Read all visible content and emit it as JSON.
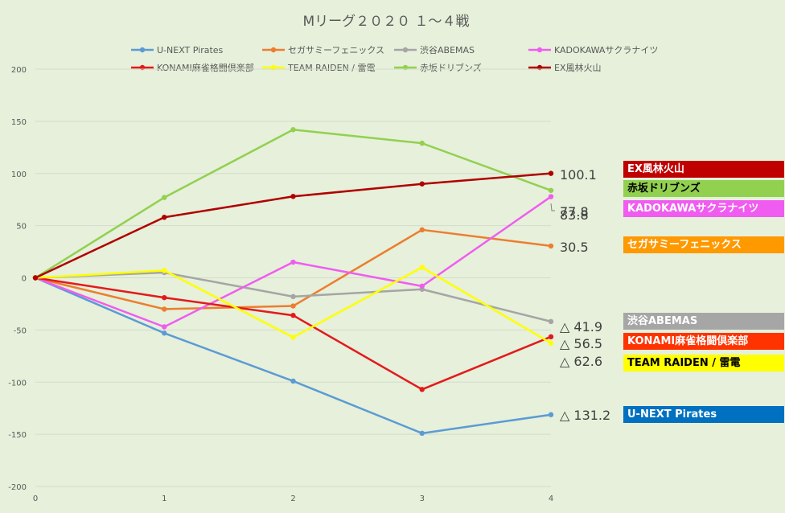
{
  "chart_data": {
    "type": "line",
    "title": "Mリーグ２０２０ １～４戦",
    "xlabel": "",
    "ylabel": "",
    "x": [
      0,
      1,
      2,
      3,
      4
    ],
    "xlim": [
      0,
      4
    ],
    "ylim": [
      -200,
      200
    ],
    "yticks": [
      200,
      150,
      100,
      50,
      0,
      -50,
      -100,
      -150,
      -200
    ],
    "grid": "horizontal",
    "legend_position": "top",
    "series": [
      {
        "name": "U-NEXT Pirates",
        "color": "#5b9bd5",
        "values": [
          0,
          -53,
          -99,
          -149,
          -131.2
        ]
      },
      {
        "name": "セガサミーフェニックス",
        "color": "#ed7d31",
        "values": [
          0,
          -30,
          -27,
          46,
          30.5
        ]
      },
      {
        "name": "渋谷ABEMAS",
        "color": "#a5a5a5",
        "values": [
          0,
          5,
          -18,
          -11,
          -41.9
        ]
      },
      {
        "name": "KADOKAWAサクラナイツ",
        "color": "#f05cf0",
        "values": [
          0,
          -47,
          15,
          -8,
          77.8
        ]
      },
      {
        "name": "KONAMI麻雀格闘倶楽部",
        "color": "#e31a1c",
        "values": [
          0,
          -19,
          -36,
          -107,
          -56.5
        ]
      },
      {
        "name": "TEAM RAIDEN / 雷電",
        "color": "#ffff00",
        "values": [
          0,
          7,
          -57,
          10,
          -62.6
        ]
      },
      {
        "name": "赤坂ドリブンズ",
        "color": "#92d050",
        "values": [
          0,
          77,
          142,
          129,
          83.8
        ]
      },
      {
        "name": "EX風林火山",
        "color": "#b00000",
        "values": [
          0,
          58,
          78,
          90,
          100.1
        ]
      }
    ],
    "end_labels": [
      {
        "text": "100.1",
        "value": 100.1
      },
      {
        "text": "83.8",
        "value": 83.8
      },
      {
        "text": "77.8",
        "value": 77.8
      },
      {
        "text": "30.5",
        "value": 30.5
      },
      {
        "text": "△ 41.9",
        "value": -41.9
      },
      {
        "text": "△ 56.5",
        "value": -56.5
      },
      {
        "text": "△ 62.6",
        "value": -62.6
      },
      {
        "text": "△ 131.2",
        "value": -131.2
      }
    ]
  },
  "team_tags": [
    {
      "label": "EX風林火山",
      "bg": "#c00000",
      "fg": "#ffffff"
    },
    {
      "label": "赤坂ドリブンズ",
      "bg": "#92d050",
      "fg": "#000000"
    },
    {
      "label": "KADOKAWAサクラナイツ",
      "bg": "#f05cf0",
      "fg": "#ffffff"
    },
    {
      "label": "セガサミーフェニックス",
      "bg": "#ff9900",
      "fg": "#ffffff"
    },
    {
      "label": "渋谷ABEMAS",
      "bg": "#a6a6a6",
      "fg": "#ffffff"
    },
    {
      "label": "KONAMI麻雀格闘倶楽部",
      "bg": "#ff3300",
      "fg": "#ffffff"
    },
    {
      "label": "TEAM RAIDEN / 雷電",
      "bg": "#ffff00",
      "fg": "#000000"
    },
    {
      "label": "U-NEXT Pirates",
      "bg": "#0070c0",
      "fg": "#ffffff"
    }
  ]
}
